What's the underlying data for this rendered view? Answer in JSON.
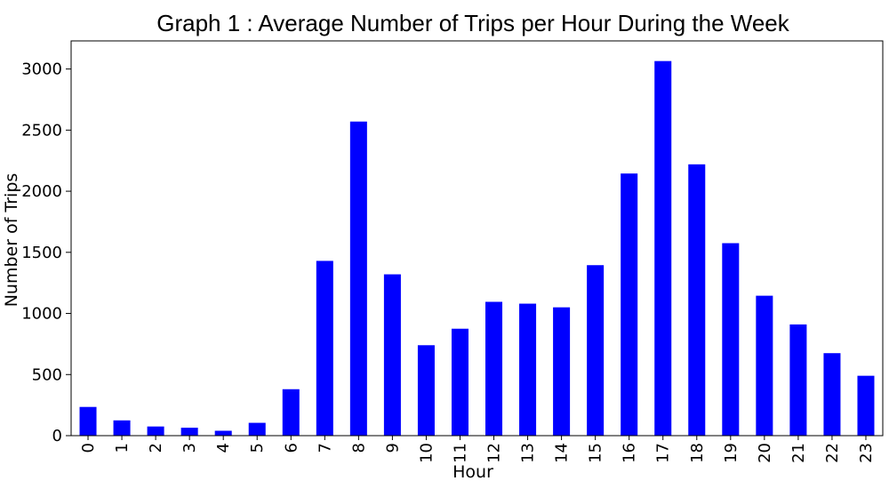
{
  "chart_data": {
    "type": "bar",
    "title": "Graph 1 : Average Number of Trips per Hour During the Week",
    "xlabel": "Hour",
    "ylabel": "Number of Trips",
    "categories": [
      "0",
      "1",
      "2",
      "3",
      "4",
      "5",
      "6",
      "7",
      "8",
      "9",
      "10",
      "11",
      "12",
      "13",
      "14",
      "15",
      "16",
      "17",
      "18",
      "19",
      "20",
      "21",
      "22",
      "23"
    ],
    "values": [
      235,
      125,
      75,
      65,
      40,
      105,
      380,
      1430,
      2570,
      1320,
      740,
      875,
      1095,
      1080,
      1050,
      1395,
      2145,
      3065,
      2220,
      1575,
      1145,
      910,
      675,
      490
    ],
    "ylim": [
      0,
      3230
    ],
    "yticks": [
      0,
      500,
      1000,
      1500,
      2000,
      2500,
      3000
    ],
    "ytick_labels": [
      "0",
      "500",
      "1000",
      "1500",
      "2000",
      "2500",
      "3000"
    ],
    "bar_color": "#0000ff",
    "grid": false
  }
}
